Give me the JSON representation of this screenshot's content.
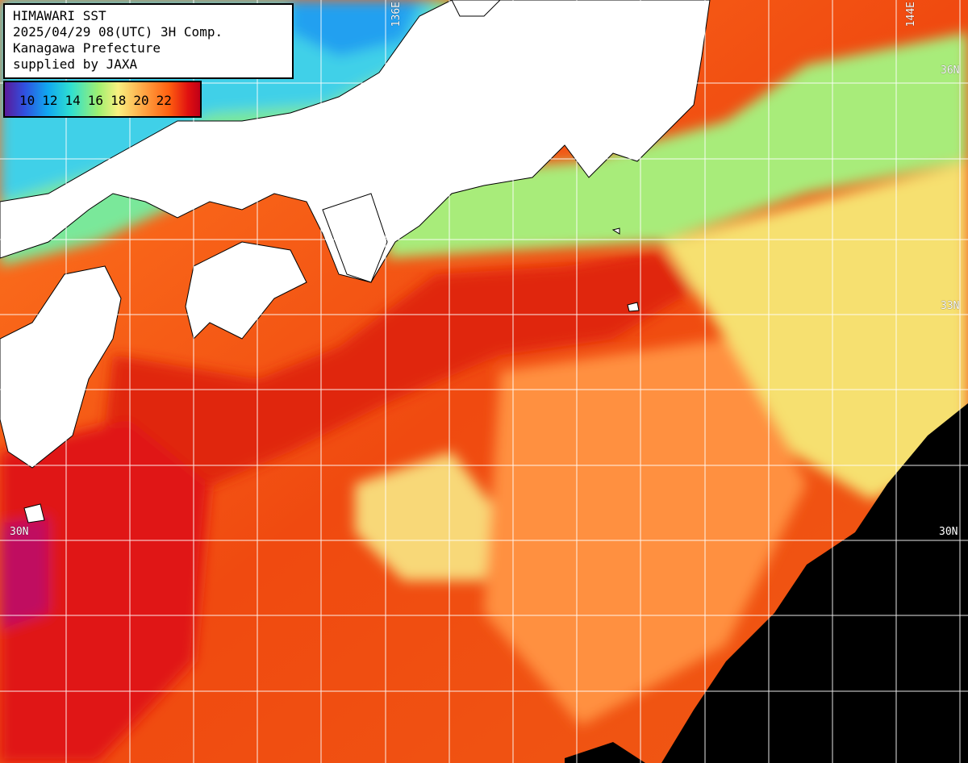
{
  "header": {
    "line1": "HIMAWARI SST",
    "line2": "2025/04/29 08(UTC) 3H Comp.",
    "line3": "Kanagawa Prefecture",
    "line4": "supplied by JAXA"
  },
  "legend": {
    "unit_hint": "",
    "ticks": [
      "10",
      "12",
      "14",
      "16",
      "18",
      "20",
      "22"
    ]
  },
  "grid_labels": {
    "lon_136": "136E",
    "lon_144": "144E",
    "lat_36_right": "36N",
    "lat_33_right": "33N",
    "lat_30_left": "30N",
    "lat_30_right": "30N"
  },
  "colors": {
    "land": "#ffffff",
    "no_data": "#000000",
    "warm": "#e8280a",
    "mid": "#ff8a30",
    "cool": "#f6e880",
    "coastal": "#9ef07a",
    "cold": "#20c8f0"
  }
}
